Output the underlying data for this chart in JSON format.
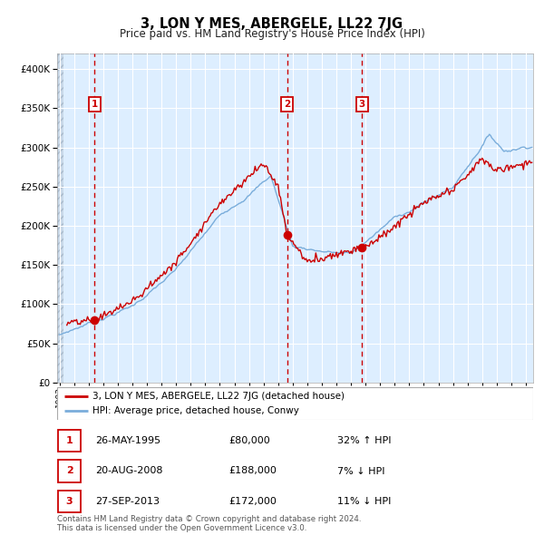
{
  "title": "3, LON Y MES, ABERGELE, LL22 7JG",
  "subtitle": "Price paid vs. HM Land Registry's House Price Index (HPI)",
  "legend_label_red": "3, LON Y MES, ABERGELE, LL22 7JG (detached house)",
  "legend_label_blue": "HPI: Average price, detached house, Conwy",
  "footer": "Contains HM Land Registry data © Crown copyright and database right 2024.\nThis data is licensed under the Open Government Licence v3.0.",
  "transactions": [
    {
      "num": "1",
      "date_str": "26-MAY-1995",
      "date_num": 1995.4,
      "price": 80000,
      "pct": "32%",
      "direction": "↑"
    },
    {
      "num": "2",
      "date_str": "20-AUG-2008",
      "date_num": 2008.63,
      "price": 188000,
      "pct": "7%",
      "direction": "↓"
    },
    {
      "num": "3",
      "date_str": "27-SEP-2013",
      "date_num": 2013.75,
      "price": 172000,
      "pct": "11%",
      "direction": "↓"
    }
  ],
  "yticks": [
    0,
    50000,
    100000,
    150000,
    200000,
    250000,
    300000,
    350000,
    400000
  ],
  "ylim": [
    0,
    420000
  ],
  "xmin": 1992.83,
  "xmax": 2025.5,
  "red_color": "#cc0000",
  "blue_color": "#7aaddb",
  "bg_color": "#ddeeff",
  "grid_color": "#ffffff",
  "fig_bg": "#f0f0f0",
  "hatch_bg": "#c8d8e8"
}
